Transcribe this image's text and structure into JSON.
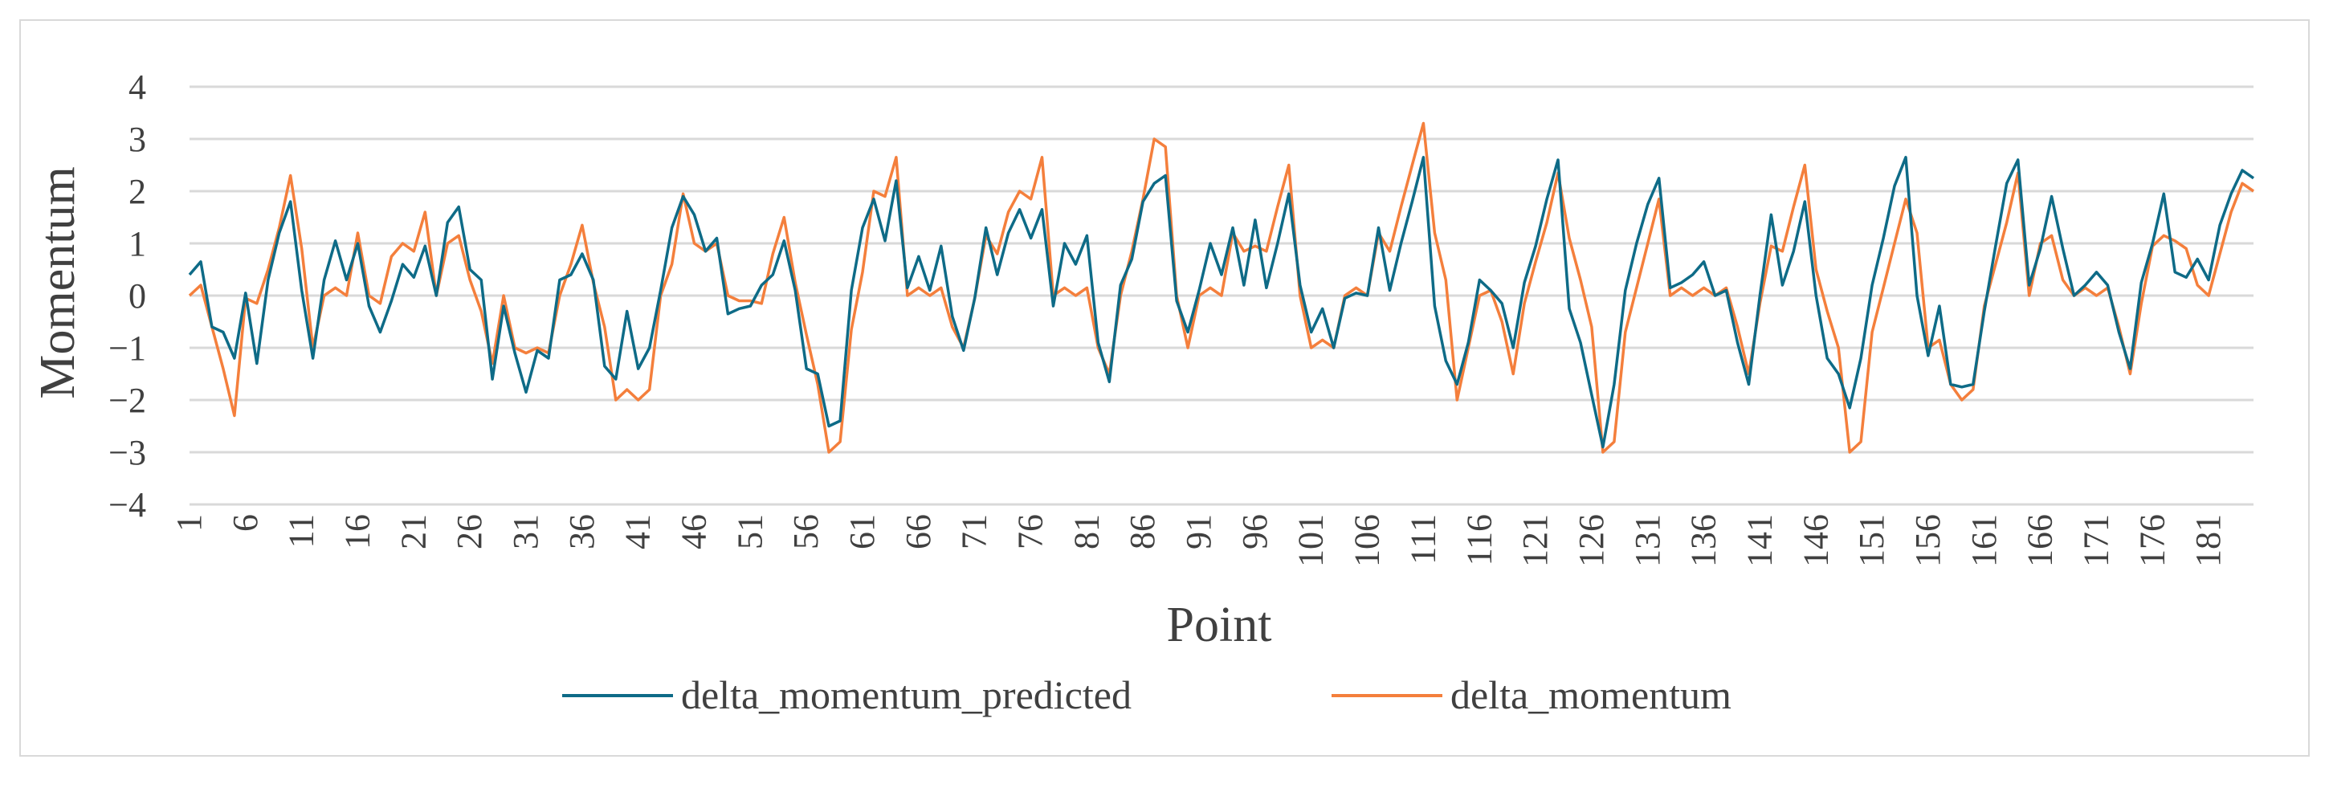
{
  "chart_data": {
    "type": "line",
    "title": "",
    "xlabel": "Point",
    "ylabel": "Momentum",
    "ylim": [
      -4,
      4
    ],
    "yticks": [
      "4",
      "3",
      "2",
      "1",
      "0",
      "−1",
      "−2",
      "−3",
      "−4"
    ],
    "xlim": [
      1,
      185
    ],
    "xticks": [
      1,
      6,
      11,
      16,
      21,
      26,
      31,
      36,
      41,
      46,
      51,
      56,
      61,
      66,
      71,
      76,
      81,
      86,
      91,
      96,
      101,
      106,
      111,
      116,
      121,
      126,
      131,
      136,
      141,
      146,
      151,
      156,
      161,
      166,
      171,
      176,
      181
    ],
    "grid": "horizontal",
    "legend": "bottom",
    "series": [
      {
        "name": "delta_momentum_predicted",
        "color": "#0e6b87",
        "values": [
          0.4,
          0.65,
          -0.6,
          -0.7,
          -1.2,
          0.05,
          -1.3,
          0.3,
          1.2,
          1.8,
          0.1,
          -1.2,
          0.3,
          1.05,
          0.3,
          1.0,
          -0.2,
          -0.7,
          -0.1,
          0.6,
          0.35,
          0.95,
          0.0,
          1.4,
          1.7,
          0.5,
          0.3,
          -1.6,
          -0.2,
          -1.1,
          -1.85,
          -1.05,
          -1.2,
          0.3,
          0.4,
          0.8,
          0.3,
          -1.35,
          -1.6,
          -0.3,
          -1.4,
          -1.0,
          0.1,
          1.3,
          1.9,
          1.55,
          0.85,
          1.1,
          -0.35,
          -0.25,
          -0.2,
          0.2,
          0.4,
          1.05,
          0.1,
          -1.4,
          -1.5,
          -2.5,
          -2.4,
          0.1,
          1.3,
          1.85,
          1.05,
          2.2,
          0.15,
          0.75,
          0.1,
          0.95,
          -0.4,
          -1.05,
          -0.05,
          1.3,
          0.4,
          1.2,
          1.65,
          1.1,
          1.65,
          -0.2,
          1.0,
          0.6,
          1.15,
          -0.9,
          -1.65,
          0.2,
          0.7,
          1.8,
          2.15,
          2.3,
          -0.1,
          -0.7,
          0.1,
          1.0,
          0.4,
          1.3,
          0.2,
          1.45,
          0.15,
          1.0,
          1.95,
          0.2,
          -0.7,
          -0.25,
          -1.0,
          -0.05,
          0.05,
          0.0,
          1.3,
          0.1,
          1.0,
          1.8,
          2.65,
          -0.2,
          -1.25,
          -1.7,
          -0.9,
          0.3,
          0.1,
          -0.15,
          -1.0,
          0.25,
          0.95,
          1.85,
          2.6,
          -0.25,
          -0.9,
          -1.9,
          -2.9,
          -1.7,
          0.1,
          1.0,
          1.75,
          2.25,
          0.15,
          0.25,
          0.4,
          0.65,
          0.0,
          0.1,
          -0.9,
          -1.7,
          0.0,
          1.55,
          0.2,
          0.85,
          1.8,
          0.0,
          -1.2,
          -1.5,
          -2.15,
          -1.2,
          0.2,
          1.1,
          2.1,
          2.65,
          0.0,
          -1.15,
          -0.2,
          -1.7,
          -1.75,
          -1.7,
          -0.3,
          0.95,
          2.15,
          2.6,
          0.2,
          0.9,
          1.9,
          0.9,
          0.0,
          0.2,
          0.45,
          0.2,
          -0.7,
          -1.4,
          0.25,
          1.0,
          1.95,
          0.45,
          0.35,
          0.7,
          0.3,
          1.35,
          1.95,
          2.4,
          2.25
        ]
      },
      {
        "name": "delta_momentum",
        "color": "#f47f3c",
        "values": [
          0.0,
          0.2,
          -0.6,
          -1.4,
          -2.3,
          -0.05,
          -0.15,
          0.5,
          1.3,
          2.3,
          0.9,
          -1.0,
          0.0,
          0.15,
          0.0,
          1.2,
          0.0,
          -0.15,
          0.75,
          1.0,
          0.85,
          1.6,
          0.0,
          1.0,
          1.15,
          0.3,
          -0.3,
          -1.3,
          0.0,
          -1.0,
          -1.1,
          -1.0,
          -1.1,
          0.0,
          0.6,
          1.35,
          0.25,
          -0.6,
          -2.0,
          -1.8,
          -2.0,
          -1.8,
          0.0,
          0.6,
          1.95,
          1.0,
          0.85,
          1.0,
          0.0,
          -0.1,
          -0.1,
          -0.15,
          0.8,
          1.5,
          0.25,
          -0.75,
          -1.7,
          -3.0,
          -2.8,
          -0.65,
          0.45,
          2.0,
          1.9,
          2.65,
          0.0,
          0.15,
          0.0,
          0.15,
          -0.6,
          -1.0,
          -0.05,
          1.15,
          0.8,
          1.6,
          2.0,
          1.85,
          2.65,
          0.0,
          0.15,
          0.0,
          0.15,
          -1.0,
          -1.5,
          0.0,
          0.85,
          1.85,
          3.0,
          2.85,
          0.0,
          -1.0,
          0.0,
          0.15,
          0.0,
          1.2,
          0.85,
          0.95,
          0.85,
          1.7,
          2.5,
          0.0,
          -1.0,
          -0.85,
          -1.0,
          0.0,
          0.15,
          0.0,
          1.2,
          0.85,
          1.7,
          2.5,
          3.3,
          1.2,
          0.3,
          -2.0,
          -1.0,
          0.0,
          0.1,
          -0.5,
          -1.5,
          -0.15,
          0.65,
          1.4,
          2.35,
          1.1,
          0.3,
          -0.6,
          -3.0,
          -2.8,
          -0.7,
          0.15,
          1.0,
          1.85,
          0.0,
          0.15,
          0.0,
          0.15,
          0.0,
          0.15,
          -0.6,
          -1.5,
          -0.15,
          0.95,
          0.85,
          1.7,
          2.5,
          0.5,
          -0.3,
          -1.0,
          -3.0,
          -2.8,
          -0.7,
          0.15,
          1.0,
          1.85,
          1.2,
          -1.0,
          -0.85,
          -1.7,
          -2.0,
          -1.8,
          -0.2,
          0.6,
          1.4,
          2.35,
          0.0,
          1.0,
          1.15,
          0.3,
          0.0,
          0.15,
          0.0,
          0.15,
          -0.6,
          -1.5,
          -0.15,
          0.95,
          1.15,
          1.05,
          0.9,
          0.2,
          0.0,
          0.8,
          1.6,
          2.15,
          2.0
        ]
      }
    ]
  }
}
